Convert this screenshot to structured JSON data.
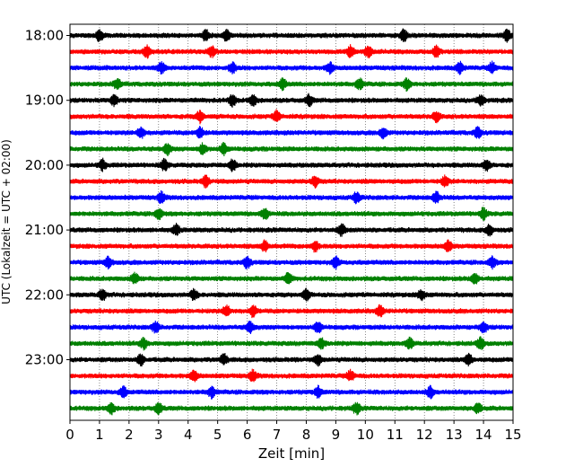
{
  "chart_data": {
    "type": "line",
    "title": "",
    "xlabel": "Zeit  [min]",
    "ylabel": "UTC (Lokalzeit = UTC + 02:00)",
    "xlim": [
      0,
      15
    ],
    "x_ticks": [
      "0",
      "1",
      "2",
      "3",
      "4",
      "5",
      "6",
      "7",
      "8",
      "9",
      "10",
      "11",
      "12",
      "13",
      "14",
      "15"
    ],
    "y_ticks": [
      "18:00",
      "19:00",
      "20:00",
      "21:00",
      "22:00",
      "23:00"
    ],
    "grid": "vertical dotted at each minute",
    "legend": "none",
    "trace_interval_minutes": 15,
    "trace_colors": [
      "#000000",
      "#ff0000",
      "#0000ff",
      "#008000"
    ],
    "traces": [
      {
        "start": "18:00",
        "color": "#000000",
        "events_min": [
          1.0,
          4.6,
          5.3,
          11.3,
          14.8
        ]
      },
      {
        "start": "18:15",
        "color": "#ff0000",
        "events_min": [
          2.6,
          4.8,
          9.5,
          10.1,
          12.4
        ]
      },
      {
        "start": "18:30",
        "color": "#0000ff",
        "events_min": [
          3.1,
          5.5,
          8.8,
          13.2,
          14.3
        ]
      },
      {
        "start": "18:45",
        "color": "#008000",
        "events_min": [
          1.6,
          7.2,
          9.8,
          11.4
        ]
      },
      {
        "start": "19:00",
        "color": "#000000",
        "events_min": [
          1.5,
          5.5,
          6.2,
          8.1,
          13.9
        ]
      },
      {
        "start": "19:15",
        "color": "#ff0000",
        "events_min": [
          4.4,
          7.0,
          12.4
        ]
      },
      {
        "start": "19:30",
        "color": "#0000ff",
        "events_min": [
          2.4,
          4.4,
          10.6,
          13.8
        ]
      },
      {
        "start": "19:45",
        "color": "#008000",
        "events_min": [
          3.3,
          4.5,
          5.2
        ]
      },
      {
        "start": "20:00",
        "color": "#000000",
        "events_min": [
          1.1,
          3.2,
          5.5,
          14.1
        ]
      },
      {
        "start": "20:15",
        "color": "#ff0000",
        "events_min": [
          4.6,
          8.3,
          12.7
        ]
      },
      {
        "start": "20:30",
        "color": "#0000ff",
        "events_min": [
          3.1,
          9.7,
          12.4
        ]
      },
      {
        "start": "20:45",
        "color": "#008000",
        "events_min": [
          3.0,
          6.6,
          14.0
        ]
      },
      {
        "start": "21:00",
        "color": "#000000",
        "events_min": [
          3.6,
          9.2,
          14.2
        ]
      },
      {
        "start": "21:15",
        "color": "#ff0000",
        "events_min": [
          6.6,
          8.3,
          12.8
        ]
      },
      {
        "start": "21:30",
        "color": "#0000ff",
        "events_min": [
          1.3,
          6.0,
          9.0,
          14.3
        ]
      },
      {
        "start": "21:45",
        "color": "#008000",
        "events_min": [
          2.2,
          7.4,
          13.7
        ]
      },
      {
        "start": "22:00",
        "color": "#000000",
        "events_min": [
          1.1,
          4.2,
          8.0,
          11.9
        ]
      },
      {
        "start": "22:15",
        "color": "#ff0000",
        "events_min": [
          5.3,
          6.2,
          10.5
        ]
      },
      {
        "start": "22:30",
        "color": "#0000ff",
        "events_min": [
          2.9,
          6.1,
          8.4,
          14.0
        ]
      },
      {
        "start": "22:45",
        "color": "#008000",
        "events_min": [
          2.5,
          8.5,
          11.5,
          13.9
        ]
      },
      {
        "start": "23:00",
        "color": "#000000",
        "events_min": [
          2.4,
          5.2,
          8.4,
          13.5
        ]
      },
      {
        "start": "23:15",
        "color": "#ff0000",
        "events_min": [
          4.2,
          6.2,
          9.5
        ]
      },
      {
        "start": "23:30",
        "color": "#0000ff",
        "events_min": [
          1.8,
          4.8,
          8.4,
          12.2
        ]
      },
      {
        "start": "23:45",
        "color": "#008000",
        "events_min": [
          1.4,
          3.0,
          9.7,
          13.8
        ]
      }
    ]
  }
}
